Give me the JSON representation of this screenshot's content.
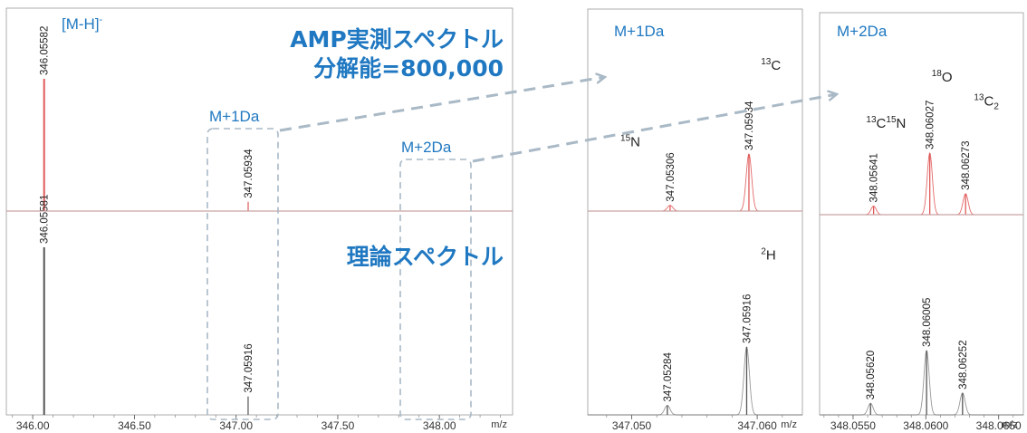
{
  "colors": {
    "accent": "#1f78c1",
    "measured": "#e05a5a",
    "theory": "#555555",
    "box": "#a9b9c6",
    "axis": "#999999"
  },
  "titles": {
    "measured_line1": "AMP実測スペクトル",
    "measured_line2": "分解能=800,000",
    "theoretical": "理論スペクトル",
    "ion": "[M-H]",
    "ion_sup": "-"
  },
  "zoom_labels": {
    "m1": "M+1Da",
    "m2": "M+2Da"
  },
  "chart_data": [
    {
      "type": "line",
      "xlabel": "m/z",
      "xlim": [
        345.87,
        348.36
      ],
      "ticks": [
        {
          "v": 346.0,
          "label": "346.00"
        },
        {
          "v": 346.5,
          "label": "346.50"
        },
        {
          "v": 347.0,
          "label": "347.00"
        },
        {
          "v": 347.5,
          "label": "347.50"
        },
        {
          "v": 348.0,
          "label": "348.00"
        }
      ],
      "series": [
        {
          "kind": "measured",
          "peaks": [
            {
              "mz": 346.05582,
              "label": "346.05582",
              "rel": 100
            },
            {
              "mz": 347.05934,
              "label": "347.05934",
              "rel": 7
            }
          ]
        },
        {
          "kind": "theoretical",
          "peaks": [
            {
              "mz": 346.05581,
              "label": "346.05581",
              "rel": 100
            },
            {
              "mz": 347.05916,
              "label": "347.05916",
              "rel": 11
            }
          ]
        }
      ]
    },
    {
      "type": "line",
      "xlabel": "m/z",
      "xlim": [
        347.0465,
        347.0636
      ],
      "ticks": [
        {
          "v": 347.05,
          "label": "347.050"
        },
        {
          "v": 347.06,
          "label": "347.060"
        }
      ],
      "series": [
        {
          "kind": "measured",
          "peaks": [
            {
              "mz": 347.05306,
              "label": "347.05306",
              "rel": 10
            },
            {
              "mz": 347.05934,
              "label": "347.05934",
              "rel": 100
            }
          ]
        },
        {
          "kind": "theoretical",
          "peaks": [
            {
              "mz": 347.05284,
              "label": "347.05284",
              "rel": 14
            },
            {
              "mz": 347.05916,
              "label": "347.05916",
              "rel": 100
            }
          ]
        }
      ],
      "isotopes": [
        {
          "mass": "13",
          "element": "C",
          "x": 347.0603,
          "y": 0.3
        },
        {
          "mass": "15",
          "element": "N",
          "x": 347.0491,
          "y": 0.68
        },
        {
          "mass": "2",
          "element": "H",
          "x": 347.0603,
          "y": 1.24
        }
      ]
    },
    {
      "type": "line",
      "xlabel": "m/z",
      "xlim": [
        348.0527,
        348.0667
      ],
      "ticks": [
        {
          "v": 348.055,
          "label": "348.0550"
        },
        {
          "v": 348.06,
          "label": "348.0600"
        },
        {
          "v": 348.065,
          "label": "348.0650"
        }
      ],
      "series": [
        {
          "kind": "measured",
          "peaks": [
            {
              "mz": 348.05641,
              "label": "348.05641",
              "rel": 14
            },
            {
              "mz": 348.06027,
              "label": "348.06027",
              "rel": 100
            },
            {
              "mz": 348.06273,
              "label": "348.06273",
              "rel": 34
            }
          ]
        },
        {
          "kind": "theoretical",
          "peaks": [
            {
              "mz": 348.0562,
              "label": "348.05620",
              "rel": 18
            },
            {
              "mz": 348.06005,
              "label": "348.06005",
              "rel": 100
            },
            {
              "mz": 348.06252,
              "label": "348.06252",
              "rel": 34
            }
          ]
        }
      ],
      "isotopes": [
        {
          "mass": "18",
          "element": "O",
          "x": 348.0604,
          "y": 0.34
        },
        {
          "mass": "13",
          "element": "C",
          "mass2": "15",
          "element2": "N",
          "x": 348.0559,
          "y": 0.57
        },
        {
          "mass": "13",
          "element": "C",
          "sub": "2",
          "x": 348.0633,
          "y": 0.46
        }
      ]
    }
  ]
}
